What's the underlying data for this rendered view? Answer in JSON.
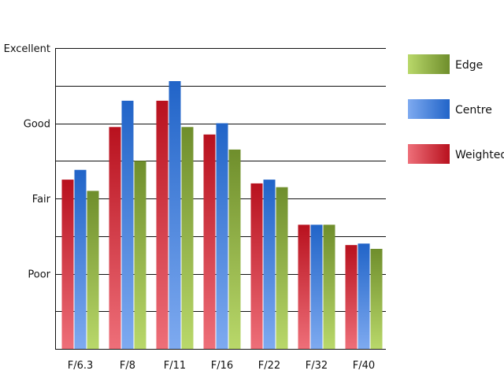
{
  "chart_data": {
    "type": "bar",
    "title": "",
    "xlabel": "",
    "ylabel": "",
    "categories": [
      "F/6.3",
      "F/8",
      "F/11",
      "F/16",
      "F/22",
      "F/32",
      "F/40"
    ],
    "y_ticks": [
      {
        "value": 1,
        "label": "Poor"
      },
      {
        "value": 2,
        "label": "Fair"
      },
      {
        "value": 3,
        "label": "Good"
      },
      {
        "value": 4,
        "label": "Excellent"
      }
    ],
    "ylim": [
      0,
      4
    ],
    "grid": "horizontal, every 0.5",
    "legend_position": "right",
    "series": [
      {
        "name": "Weighted",
        "color_light": "#ee6f79",
        "color_dark": "#b8111e",
        "values": [
          2.25,
          2.95,
          3.3,
          2.85,
          2.2,
          1.65,
          1.38
        ]
      },
      {
        "name": "Centre",
        "color_light": "#7eaaf0",
        "color_dark": "#2164c8",
        "values": [
          2.38,
          3.3,
          3.56,
          3.0,
          2.25,
          1.65,
          1.4
        ]
      },
      {
        "name": "Edge",
        "color_light": "#b9d86a",
        "color_dark": "#6f8e2c",
        "values": [
          2.1,
          2.5,
          2.95,
          2.65,
          2.15,
          1.65,
          1.33
        ]
      }
    ],
    "legend_order": [
      "Edge",
      "Centre",
      "Weighted"
    ]
  }
}
